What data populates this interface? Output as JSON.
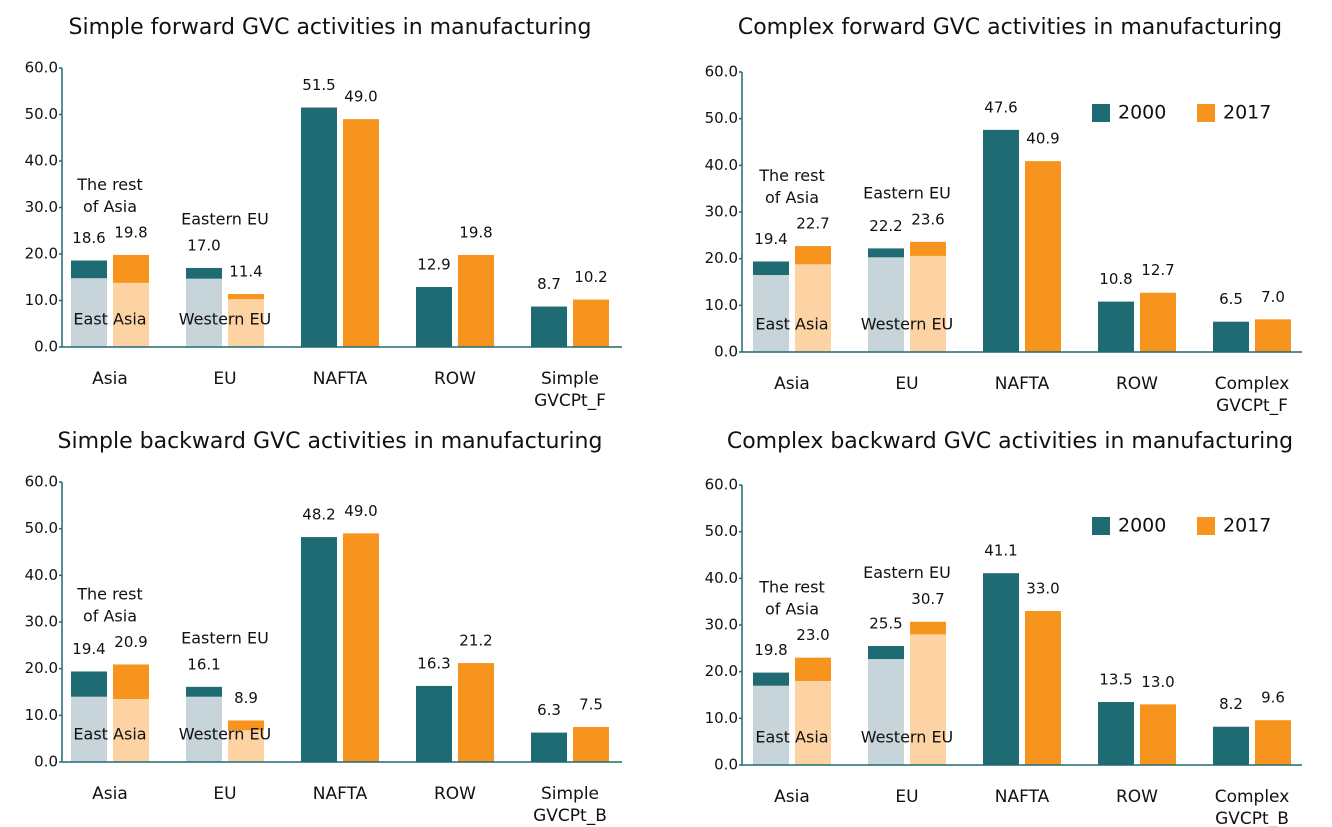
{
  "chart_data": [
    {
      "type": "bar",
      "title": "Simple forward GVC activities in manufacturing",
      "categories": [
        "Asia",
        "EU",
        "NAFTA",
        "ROW",
        "Simple\nGVCPt_F"
      ],
      "series": [
        {
          "color": "#1e6b74",
          "inner_color": "#c7d4da",
          "values": [
            18.6,
            17.0,
            51.5,
            12.9,
            8.7
          ],
          "value_labels": [
            "18.6",
            "17.0",
            "51.5",
            "12.9",
            "8.7"
          ],
          "inner_values": [
            14.8,
            14.7,
            null,
            null,
            null
          ]
        },
        {
          "color": "#f7941d",
          "inner_color": "#fdd3a4",
          "values": [
            19.8,
            11.4,
            49.0,
            19.8,
            10.2
          ],
          "value_labels": [
            "19.8",
            "11.4",
            "49.0",
            "19.8",
            "10.2"
          ],
          "inner_values": [
            13.8,
            10.3,
            null,
            null,
            null
          ]
        }
      ],
      "annotations": {
        "upper": [
          "The rest\nof Asia",
          "Eastern EU"
        ],
        "lower": [
          "East Asia",
          "Western EU"
        ]
      },
      "ylim": [
        0,
        60
      ],
      "yticks": [
        {
          "value": 0,
          "label": "0.0"
        },
        {
          "value": 10,
          "label": "10.0"
        },
        {
          "value": 20,
          "label": "20.0"
        },
        {
          "value": 30,
          "label": "30.0"
        },
        {
          "value": 40,
          "label": "40.0"
        },
        {
          "value": 50,
          "label": "50.0"
        },
        {
          "value": 60,
          "label": "60.0"
        }
      ],
      "legend": false
    },
    {
      "type": "bar",
      "title": "Complex forward GVC activities in manufacturing",
      "categories": [
        "Asia",
        "EU",
        "NAFTA",
        "ROW",
        "Complex\nGVCPt_F"
      ],
      "series": [
        {
          "name": "2000",
          "color": "#1e6b74",
          "inner_color": "#c7d4da",
          "values": [
            19.4,
            22.2,
            47.6,
            10.8,
            6.5
          ],
          "value_labels": [
            "19.4",
            "22.2",
            "47.6",
            "10.8",
            "6.5"
          ],
          "inner_values": [
            16.5,
            20.3,
            null,
            null,
            null
          ]
        },
        {
          "name": "2017",
          "color": "#f7941d",
          "inner_color": "#fdd3a4",
          "values": [
            22.7,
            23.6,
            40.9,
            12.7,
            7.0
          ],
          "value_labels": [
            "22.7",
            "23.6",
            "40.9",
            "12.7",
            "7.0"
          ],
          "inner_values": [
            18.8,
            20.6,
            null,
            null,
            null
          ]
        }
      ],
      "annotations": {
        "upper": [
          "The rest\nof Asia",
          "Eastern EU"
        ],
        "lower": [
          "East Asia",
          "Western EU"
        ]
      },
      "ylim": [
        0,
        60
      ],
      "yticks": [
        {
          "value": 0,
          "label": "0.0"
        },
        {
          "value": 10,
          "label": "10.0"
        },
        {
          "value": 20,
          "label": "20.0"
        },
        {
          "value": 30,
          "label": "30.0"
        },
        {
          "value": 40,
          "label": "40.0"
        },
        {
          "value": 50,
          "label": "50.0"
        },
        {
          "value": 60,
          "label": "60.0"
        }
      ],
      "legend": true
    },
    {
      "type": "bar",
      "title": "Simple backward GVC activities in manufacturing",
      "categories": [
        "Asia",
        "EU",
        "NAFTA",
        "ROW",
        "Simple\nGVCPt_B"
      ],
      "series": [
        {
          "color": "#1e6b74",
          "inner_color": "#c7d4da",
          "values": [
            19.4,
            16.1,
            48.2,
            16.3,
            6.3
          ],
          "value_labels": [
            "19.4",
            "16.1",
            "48.2",
            "16.3",
            "6.3"
          ],
          "inner_values": [
            14.0,
            14.0,
            null,
            null,
            null
          ]
        },
        {
          "color": "#f7941d",
          "inner_color": "#fdd3a4",
          "values": [
            20.9,
            8.9,
            49.0,
            21.2,
            7.5
          ],
          "value_labels": [
            "20.9",
            "8.9",
            "49.0",
            "21.2",
            "7.5"
          ],
          "inner_values": [
            13.5,
            6.8,
            null,
            null,
            null
          ]
        }
      ],
      "annotations": {
        "upper": [
          "The rest\nof Asia",
          "Eastern EU"
        ],
        "lower": [
          "East Asia",
          "Western EU"
        ]
      },
      "ylim": [
        0,
        60
      ],
      "yticks": [
        {
          "value": 0,
          "label": "0.0"
        },
        {
          "value": 10,
          "label": "10.0"
        },
        {
          "value": 20,
          "label": "20.0"
        },
        {
          "value": 30,
          "label": "30.0"
        },
        {
          "value": 40,
          "label": "40.0"
        },
        {
          "value": 50,
          "label": "50.0"
        },
        {
          "value": 60,
          "label": "60.0"
        }
      ],
      "legend": false
    },
    {
      "type": "bar",
      "title": "Complex backward GVC activities in manufacturing",
      "categories": [
        "Asia",
        "EU",
        "NAFTA",
        "ROW",
        "Complex\nGVCPt_B"
      ],
      "series": [
        {
          "name": "2000",
          "color": "#1e6b74",
          "inner_color": "#c7d4da",
          "values": [
            19.8,
            25.5,
            41.1,
            13.5,
            8.2
          ],
          "value_labels": [
            "19.8",
            "25.5",
            "41.1",
            "13.5",
            "8.2"
          ],
          "inner_values": [
            17.0,
            22.7,
            null,
            null,
            null
          ]
        },
        {
          "name": "2017",
          "color": "#f7941d",
          "inner_color": "#fdd3a4",
          "values": [
            23.0,
            30.7,
            33.0,
            13.0,
            9.6
          ],
          "value_labels": [
            "23.0",
            "30.7",
            "33.0",
            "13.0",
            "9.6"
          ],
          "inner_values": [
            18.0,
            28.0,
            null,
            null,
            null
          ]
        }
      ],
      "annotations": {
        "upper": [
          "The rest\nof Asia",
          "Eastern EU"
        ],
        "lower": [
          "East Asia",
          "Western EU"
        ]
      },
      "ylim": [
        0,
        60
      ],
      "yticks": [
        {
          "value": 0,
          "label": "0.0"
        },
        {
          "value": 10,
          "label": "10.0"
        },
        {
          "value": 20,
          "label": "20.0"
        },
        {
          "value": 30,
          "label": "30.0"
        },
        {
          "value": 40,
          "label": "40.0"
        },
        {
          "value": 50,
          "label": "50.0"
        },
        {
          "value": 60,
          "label": "60.0"
        }
      ],
      "legend": true
    }
  ]
}
